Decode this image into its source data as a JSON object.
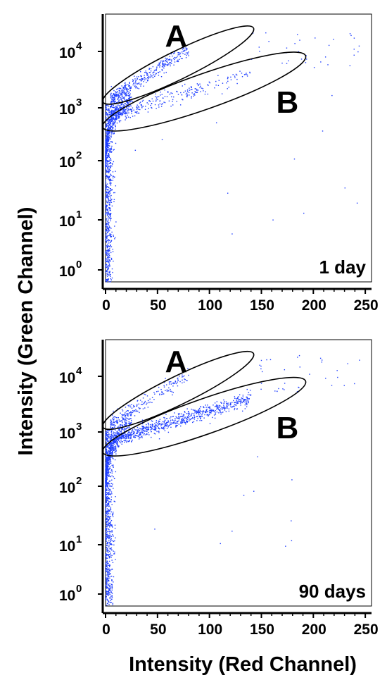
{
  "chart_data": {
    "type": "scatter",
    "xlabel": "Intensity (Red Channel)",
    "ylabel": "Intensity (Green Channel)",
    "x_ticks": [
      "0",
      "50",
      "100",
      "150",
      "200",
      "250"
    ],
    "y_ticks": [
      {
        "base": "10",
        "exp": "0"
      },
      {
        "base": "10",
        "exp": "1"
      },
      {
        "base": "10",
        "exp": "2"
      },
      {
        "base": "10",
        "exp": "3"
      },
      {
        "base": "10",
        "exp": "4"
      }
    ],
    "xlim": [
      0,
      256
    ],
    "ylim": [
      0.5,
      50000
    ],
    "y_scale": "log",
    "point_color": "#1f3fff",
    "panels": [
      {
        "label": "1 day",
        "gates": [
          {
            "name": "A",
            "x_range": [
              0,
              140
            ],
            "y_range": [
              1200,
              26000
            ]
          },
          {
            "name": "B",
            "x_range": [
              0,
              190
            ],
            "y_range": [
              400,
              8000
            ]
          }
        ]
      },
      {
        "label": "90 days",
        "gates": [
          {
            "name": "A",
            "x_range": [
              0,
              140
            ],
            "y_range": [
              1200,
              26000
            ]
          },
          {
            "name": "B",
            "x_range": [
              0,
              190
            ],
            "y_range": [
              400,
              8000
            ]
          }
        ]
      }
    ]
  }
}
